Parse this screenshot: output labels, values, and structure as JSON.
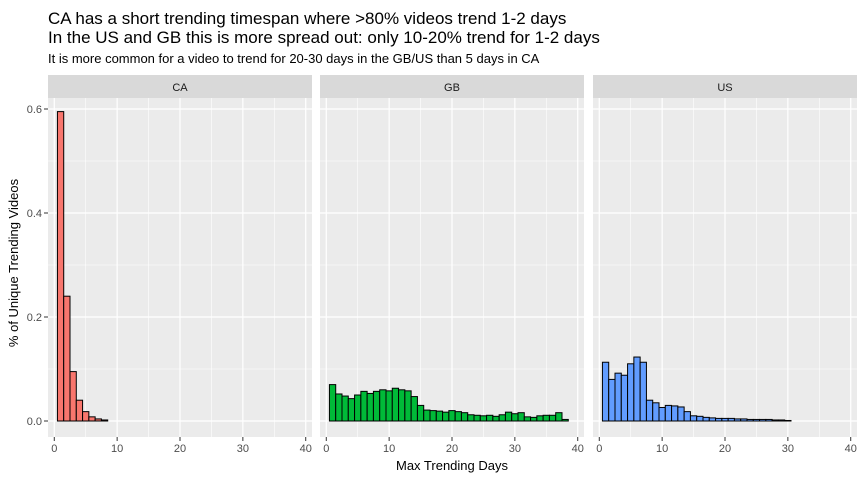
{
  "chart_data": {
    "type": "bar",
    "title_line1": "CA has a short trending timespan where >80% videos trend 1-2 days",
    "title_line2": "In the US and GB this is more spread out: only 10-20% trend for 1-2 days",
    "subtitle": "It is more common for a video to trend for 20-30 days in the GB/US than 5 days in CA",
    "xlabel": "Max Trending Days",
    "ylabel": "% of Unique Trending Videos",
    "ylim": [
      0,
      0.6
    ],
    "y_ticks": [
      0,
      0.2,
      0.4,
      0.6
    ],
    "y_tick_labels": [
      "0.0",
      "0.2",
      "0.4",
      "0.6"
    ],
    "x_ticks": [
      0,
      10,
      20,
      30,
      40
    ],
    "x_tick_labels": [
      "0",
      "10",
      "20",
      "30",
      "40"
    ],
    "xlim": [
      -1,
      41
    ],
    "panels": [
      {
        "name": "CA",
        "fill": "#F8766D",
        "days": [
          1,
          2,
          3,
          4,
          5,
          6,
          7,
          8
        ],
        "values": [
          0.595,
          0.24,
          0.095,
          0.04,
          0.018,
          0.008,
          0.004,
          0.002
        ]
      },
      {
        "name": "GB",
        "fill": "#00BA38",
        "days": [
          1,
          2,
          3,
          4,
          5,
          6,
          7,
          8,
          9,
          10,
          11,
          12,
          13,
          14,
          15,
          16,
          17,
          18,
          19,
          20,
          21,
          22,
          23,
          24,
          25,
          26,
          27,
          28,
          29,
          30,
          31,
          32,
          33,
          34,
          35,
          36,
          37,
          38
        ],
        "values": [
          0.07,
          0.052,
          0.048,
          0.043,
          0.05,
          0.057,
          0.053,
          0.057,
          0.06,
          0.058,
          0.063,
          0.06,
          0.058,
          0.047,
          0.03,
          0.021,
          0.02,
          0.019,
          0.017,
          0.02,
          0.018,
          0.016,
          0.012,
          0.011,
          0.01,
          0.011,
          0.009,
          0.012,
          0.017,
          0.014,
          0.016,
          0.008,
          0.007,
          0.01,
          0.011,
          0.011,
          0.016,
          0.003
        ]
      },
      {
        "name": "US",
        "fill": "#619CFF",
        "days": [
          1,
          2,
          3,
          4,
          5,
          6,
          7,
          8,
          9,
          10,
          11,
          12,
          13,
          14,
          15,
          16,
          17,
          18,
          19,
          20,
          21,
          22,
          23,
          24,
          25,
          26,
          27,
          28,
          29,
          30
        ],
        "values": [
          0.113,
          0.08,
          0.092,
          0.088,
          0.11,
          0.123,
          0.113,
          0.04,
          0.035,
          0.026,
          0.03,
          0.029,
          0.027,
          0.018,
          0.01,
          0.009,
          0.007,
          0.006,
          0.005,
          0.005,
          0.005,
          0.004,
          0.004,
          0.003,
          0.003,
          0.003,
          0.003,
          0.002,
          0.002,
          0.001
        ]
      }
    ]
  }
}
